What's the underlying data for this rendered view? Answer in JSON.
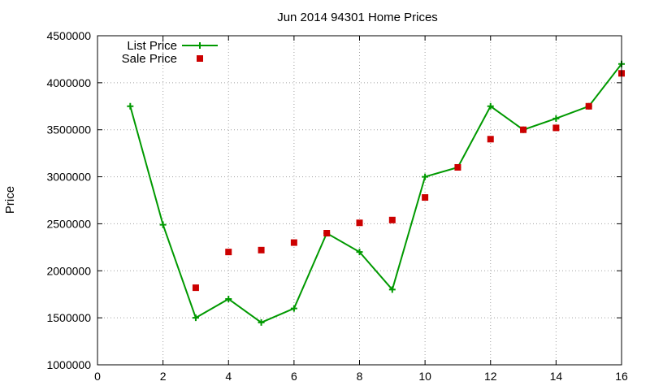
{
  "chart_data": {
    "type": "line",
    "title": "Jun 2014 94301 Home Prices",
    "xlabel": "",
    "ylabel": "Price",
    "xlim": [
      0,
      16
    ],
    "ylim": [
      1000000,
      4500000
    ],
    "x_ticks": [
      0,
      2,
      4,
      6,
      8,
      10,
      12,
      14,
      16
    ],
    "y_ticks": [
      1000000,
      1500000,
      2000000,
      2500000,
      3000000,
      3500000,
      4000000,
      4500000
    ],
    "grid": true,
    "legend_position": "top-left",
    "series": [
      {
        "name": "List Price",
        "style": "linespoints",
        "marker": "plus",
        "color": "#009900",
        "x": [
          1,
          2,
          3,
          4,
          5,
          6,
          7,
          8,
          9,
          10,
          11,
          12,
          13,
          14,
          15,
          16
        ],
        "y": [
          3750000,
          2490000,
          1500000,
          1700000,
          1450000,
          1600000,
          2400000,
          2200000,
          1800000,
          3000000,
          3100000,
          3750000,
          3500000,
          3620000,
          3750000,
          4200000
        ]
      },
      {
        "name": "Sale Price",
        "style": "points",
        "marker": "square",
        "color": "#cc0000",
        "x": [
          3,
          4,
          5,
          6,
          7,
          8,
          9,
          10,
          11,
          12,
          13,
          14,
          15,
          16
        ],
        "y": [
          1820000,
          2200000,
          2220000,
          2300000,
          2400000,
          2510000,
          2540000,
          2780000,
          3100000,
          3400000,
          3500000,
          3520000,
          3750000,
          4100000
        ]
      }
    ]
  }
}
